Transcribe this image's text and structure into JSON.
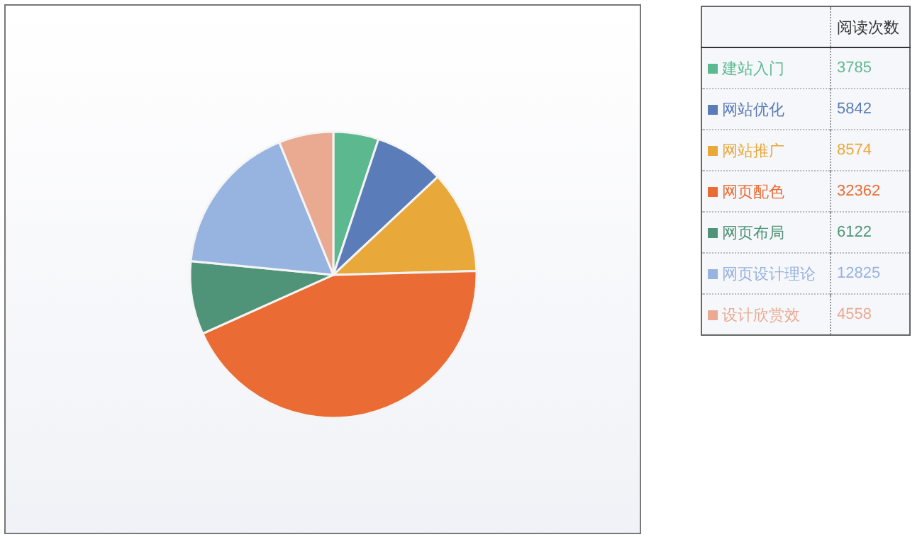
{
  "chart_data": {
    "type": "pie",
    "legend_title": "阅读次数",
    "data_labels": true,
    "legend": "right",
    "categories": [
      "建站入门",
      "网站优化",
      "网站推广",
      "网页配色",
      "网页布局",
      "网页设计理论",
      "设计欣赏效"
    ],
    "values": [
      3785,
      5842,
      8574,
      32362,
      6122,
      12825,
      4558
    ],
    "colors": [
      "#5cb98f",
      "#5a7cb8",
      "#e9a83a",
      "#ea6c34",
      "#4f9478",
      "#97b3df",
      "#eaaa92"
    ]
  }
}
